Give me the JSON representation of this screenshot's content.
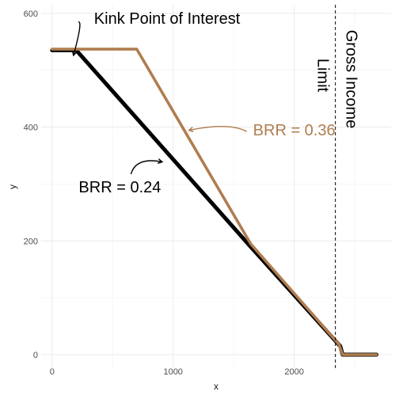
{
  "chart_data": {
    "type": "line",
    "title": "",
    "xlabel": "x",
    "ylabel": "y",
    "xlim": [
      -90,
      2800
    ],
    "ylim": [
      -25,
      615
    ],
    "x_ticks": [
      0,
      1000,
      2000
    ],
    "y_ticks": [
      0,
      200,
      400,
      600
    ],
    "x_minor": [
      500,
      1500,
      2500
    ],
    "y_minor": [
      100,
      300,
      500
    ],
    "grid": true,
    "colors": {
      "black_series": "#000000",
      "brown_series": "#b07d4f",
      "annotation_black": "#000000",
      "annotation_brown": "#b07d4f"
    },
    "series": [
      {
        "color": "#000000",
        "x": [
          0,
          200,
          1630,
          2380,
          2400,
          2680
        ],
        "y": [
          535,
          535,
          192,
          15,
          0,
          0
        ]
      },
      {
        "color": "#b07d4f",
        "x": [
          0,
          700,
          1640,
          2370,
          2400,
          2680
        ],
        "y": [
          537,
          537,
          195,
          18,
          0,
          0
        ]
      }
    ],
    "vline": {
      "x": 2340
    },
    "annotations": [
      {
        "id": "kink",
        "text": "Kink Point of Interest",
        "x": 950,
        "y": 590,
        "color": "#000000",
        "arrow_to": [
          190,
          540
        ]
      },
      {
        "id": "brr036",
        "text": "BRR = 0.36",
        "x": 2000,
        "y": 395,
        "color": "#b07d4f",
        "arrow_to": [
          1130,
          400
        ]
      },
      {
        "id": "brr024",
        "text": "BRR = 0.24",
        "x": 560,
        "y": 295,
        "color": "#000000",
        "arrow_to": [
          910,
          350
        ]
      },
      {
        "id": "gross1",
        "text": "Gross Income",
        "color": "#000000"
      },
      {
        "id": "gross2",
        "text": "Limit",
        "color": "#000000"
      }
    ]
  }
}
